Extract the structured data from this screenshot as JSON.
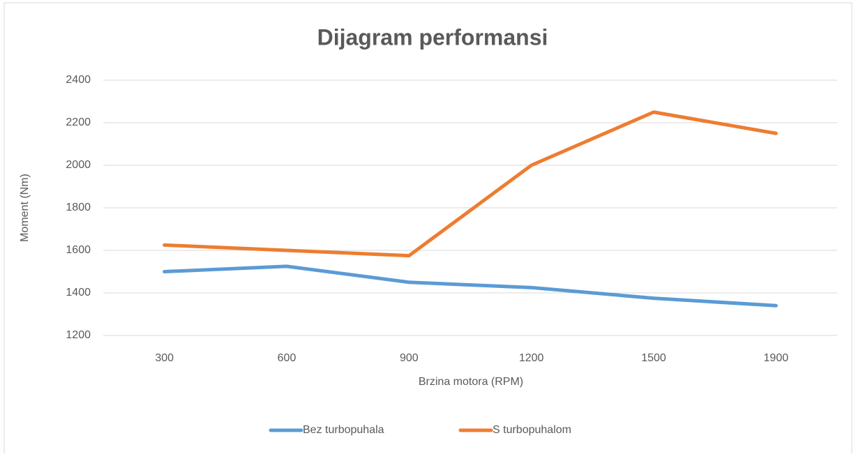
{
  "chart_data": {
    "type": "line",
    "title": "Dijagram performansi",
    "x_label": "Brzina motora (RPM)",
    "y_label": "Moment (Nm)",
    "categories": [
      "300",
      "600",
      "900",
      "1200",
      "1500",
      "1900"
    ],
    "series": [
      {
        "name": "Bez turbopuhala",
        "color": "#5b9bd5",
        "values": [
          1500,
          1525,
          1450,
          1425,
          1375,
          1340
        ]
      },
      {
        "name": "S turbopuhalom",
        "color": "#ed7d31",
        "values": [
          1625,
          1600,
          1575,
          2000,
          2250,
          2150
        ]
      }
    ],
    "ylim": [
      1200,
      2400
    ],
    "yticks": [
      1200,
      1400,
      1600,
      1800,
      2000,
      2200,
      2400
    ],
    "grid": true,
    "legend": "bottom"
  }
}
